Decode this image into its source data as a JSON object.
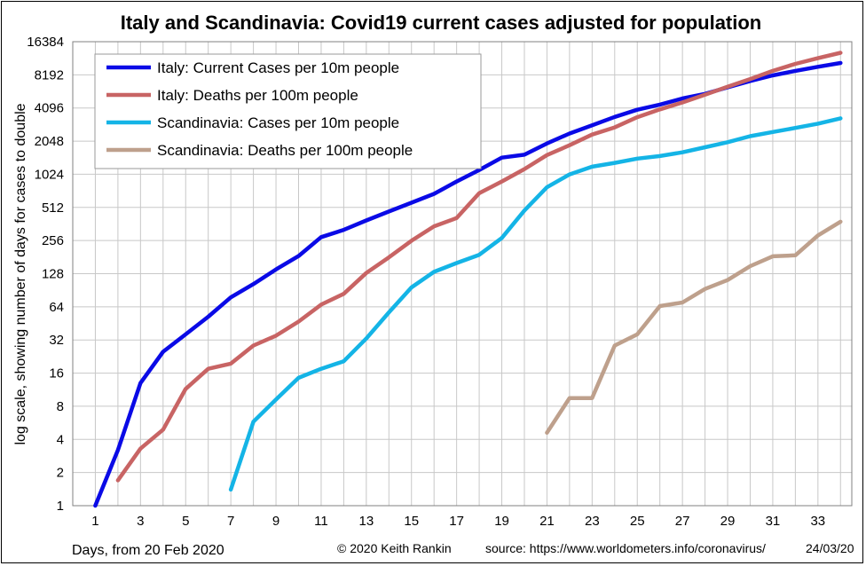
{
  "chart_data": {
    "type": "line",
    "title": "Italy and Scandinavia: Covid19 current cases adjusted for population",
    "xlabel": "Days, from 20 Feb 2020",
    "ylabel": "log scale, showing number of days for cases to double",
    "y_scale": "log2",
    "ylim": [
      1,
      16384
    ],
    "xlim": [
      0,
      34.5
    ],
    "y_ticks": [
      1,
      2,
      4,
      8,
      16,
      32,
      64,
      128,
      256,
      512,
      1024,
      2048,
      4096,
      8192,
      16384
    ],
    "y_tick_labels": [
      "1",
      "2",
      "4",
      "8",
      "16",
      "32",
      "64",
      "128",
      "256",
      "512",
      "1024",
      "2048",
      "4096",
      "8192",
      "16384"
    ],
    "x_ticks": [
      1,
      3,
      5,
      7,
      9,
      11,
      13,
      15,
      17,
      19,
      21,
      23,
      25,
      27,
      29,
      31,
      33
    ],
    "x_tick_labels": [
      "1",
      "3",
      "5",
      "7",
      "9",
      "11",
      "13",
      "15",
      "17",
      "19",
      "21",
      "23",
      "25",
      "27",
      "29",
      "31",
      "33"
    ],
    "grid": true,
    "legend_position": "top-left",
    "series": [
      {
        "name": "Italy: Current Cases per 10m people",
        "color": "#0a0ae6",
        "x": [
          1,
          2,
          3,
          4,
          5,
          6,
          7,
          8,
          9,
          10,
          11,
          12,
          13,
          14,
          15,
          16,
          17,
          18,
          19,
          20,
          21,
          22,
          23,
          24,
          25,
          26,
          27,
          28,
          29,
          30,
          31,
          32,
          33,
          34
        ],
        "y": [
          1,
          3.2,
          13,
          25,
          36,
          52,
          78,
          103,
          140,
          185,
          275,
          320,
          390,
          470,
          565,
          680,
          880,
          1120,
          1450,
          1540,
          1950,
          2400,
          2850,
          3400,
          3950,
          4400,
          5000,
          5500,
          6300,
          7200,
          8100,
          8900,
          9700,
          10500
        ]
      },
      {
        "name": "Italy: Deaths per 100m people",
        "color": "#c86464",
        "x": [
          2,
          3,
          4,
          5,
          6,
          7,
          8,
          9,
          10,
          11,
          12,
          13,
          14,
          15,
          16,
          17,
          18,
          19,
          20,
          21,
          22,
          23,
          24,
          25,
          26,
          27,
          28,
          29,
          30,
          31,
          32,
          33,
          34
        ],
        "y": [
          1.7,
          3.3,
          4.9,
          11.5,
          17.5,
          19.5,
          28.5,
          35,
          47,
          67,
          84,
          130,
          180,
          255,
          345,
          410,
          690,
          880,
          1140,
          1530,
          1880,
          2350,
          2730,
          3380,
          3980,
          4600,
          5400,
          6400,
          7500,
          8900,
          10300,
          11600,
          13000
        ]
      },
      {
        "name": "Scandinavia: Cases per 10m people",
        "color": "#14b4e6",
        "x": [
          7,
          8,
          9,
          10,
          11,
          12,
          13,
          14,
          15,
          16,
          17,
          18,
          19,
          20,
          21,
          22,
          23,
          24,
          25,
          26,
          27,
          28,
          29,
          30,
          31,
          32,
          33,
          34
        ],
        "y": [
          1.4,
          5.8,
          9.2,
          14.5,
          17.5,
          20.5,
          33,
          57,
          96,
          133,
          160,
          190,
          270,
          480,
          780,
          1020,
          1200,
          1300,
          1420,
          1500,
          1620,
          1800,
          2000,
          2270,
          2480,
          2700,
          2950,
          3300
        ]
      },
      {
        "name": "Scandinavia: Deaths per 100m people",
        "color": "#bea08c",
        "x": [
          21,
          22,
          23,
          24,
          25,
          26,
          27,
          28,
          29,
          30,
          31,
          32,
          33,
          34
        ],
        "y": [
          4.6,
          9.5,
          9.5,
          28.5,
          36,
          65,
          70,
          93,
          112,
          150,
          184,
          188,
          285,
          380
        ]
      }
    ],
    "footer": {
      "copyright": "© 2020  Keith  Rankin",
      "source": "source:  https://www.worldometers.info/coronavirus/",
      "date": "24/03/20"
    }
  }
}
